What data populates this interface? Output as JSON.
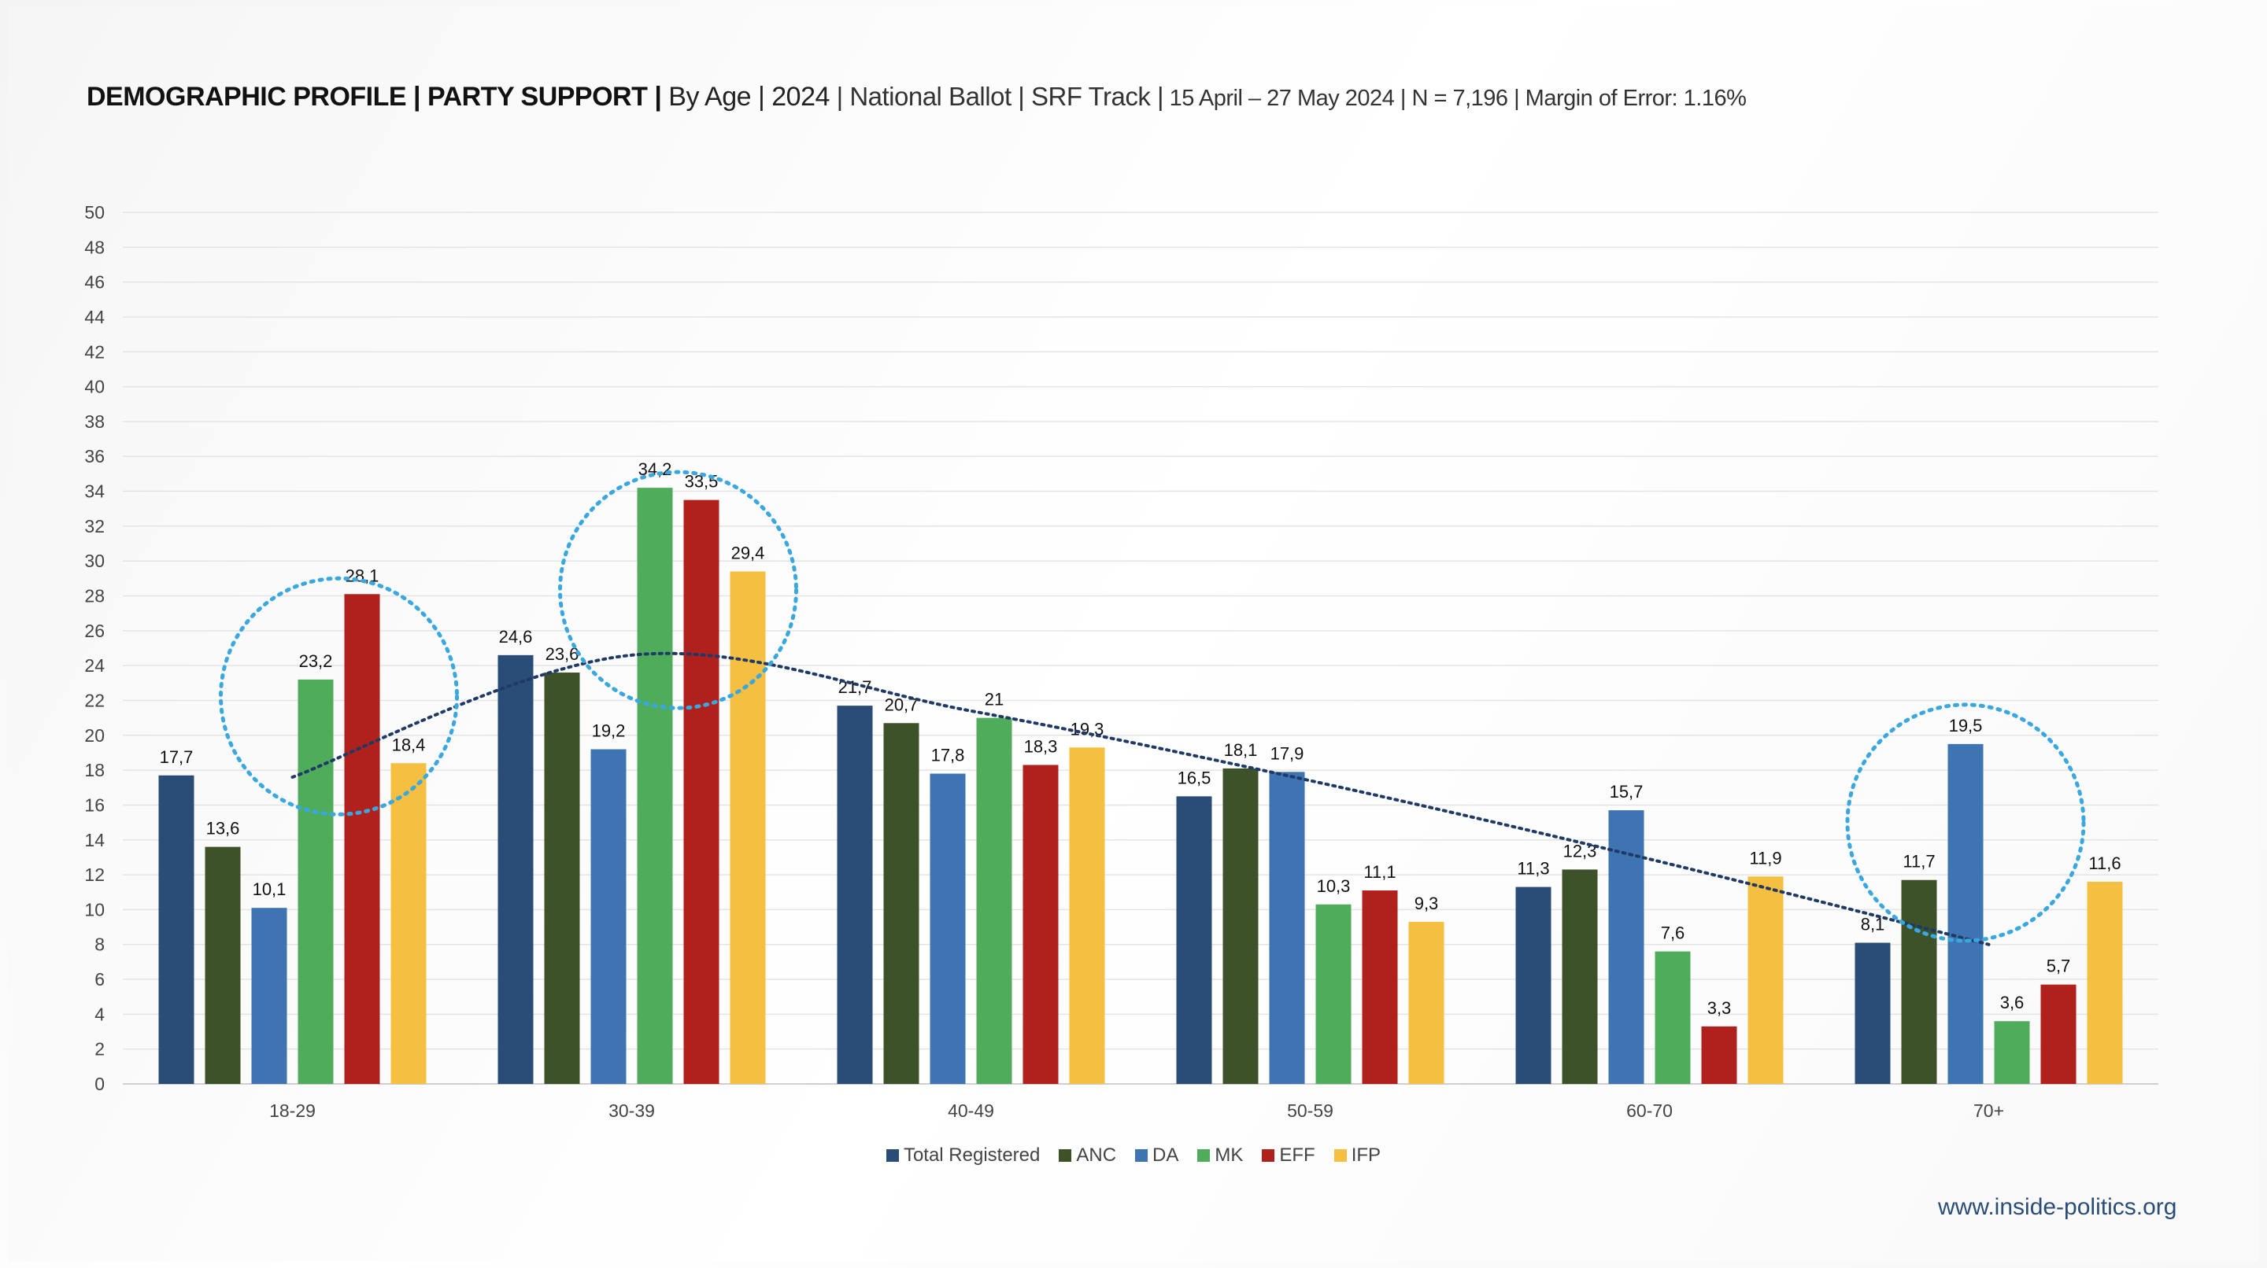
{
  "title": {
    "bold": "DEMOGRAPHIC PROFILE | PARTY SUPPORT |",
    "medium": " By Age | 2024",
    "light": " | National Ballot | SRF Track |",
    "small": " 15 April – 27 May 2024 | N = 7,196 | Margin of Error: 1.16%"
  },
  "footer": {
    "url": "www.inside-politics.org"
  },
  "colors": {
    "grid": "#e4e4e4",
    "highlight_circle": "#3aa8e0",
    "trendline": "#1f3a66"
  },
  "chart_data": {
    "type": "bar",
    "title": "DEMOGRAPHIC PROFILE | PARTY SUPPORT | By Age | 2024",
    "xlabel": "",
    "ylabel": "",
    "ylim": [
      0,
      50
    ],
    "ytick_step": 2,
    "grid": true,
    "legend_position": "bottom",
    "categories": [
      "18-29",
      "30-39",
      "40-49",
      "50-59",
      "60-70",
      "70+"
    ],
    "series": [
      {
        "name": "Total Registered",
        "color": "#2a4d77",
        "values": [
          17.7,
          24.6,
          21.7,
          16.5,
          11.3,
          8.1
        ]
      },
      {
        "name": "ANC",
        "color": "#3d5229",
        "values": [
          13.6,
          23.6,
          20.7,
          18.1,
          12.3,
          11.7
        ]
      },
      {
        "name": "DA",
        "color": "#3f74b3",
        "values": [
          10.1,
          19.2,
          17.8,
          17.9,
          15.7,
          19.5
        ]
      },
      {
        "name": "MK",
        "color": "#4fac5a",
        "values": [
          23.2,
          34.2,
          21,
          10.3,
          7.6,
          3.6
        ]
      },
      {
        "name": "EFF",
        "color": "#b0201c",
        "values": [
          28.1,
          33.5,
          18.3,
          11.1,
          3.3,
          5.7
        ]
      },
      {
        "name": "IFP",
        "color": "#f5bf41",
        "values": [
          18.4,
          29.4,
          19.3,
          9.3,
          11.9,
          11.6
        ]
      }
    ],
    "trendline": {
      "series": "Total Registered",
      "type": "polynomial",
      "values": [
        17.6,
        24.6,
        21.4,
        17.4,
        12.9,
        8.0
      ]
    },
    "highlights": [
      {
        "category": "18-29",
        "series": [
          "MK",
          "EFF"
        ]
      },
      {
        "category": "30-39",
        "series": [
          "MK",
          "EFF"
        ]
      },
      {
        "category": "70+",
        "series": [
          "DA"
        ]
      }
    ]
  }
}
